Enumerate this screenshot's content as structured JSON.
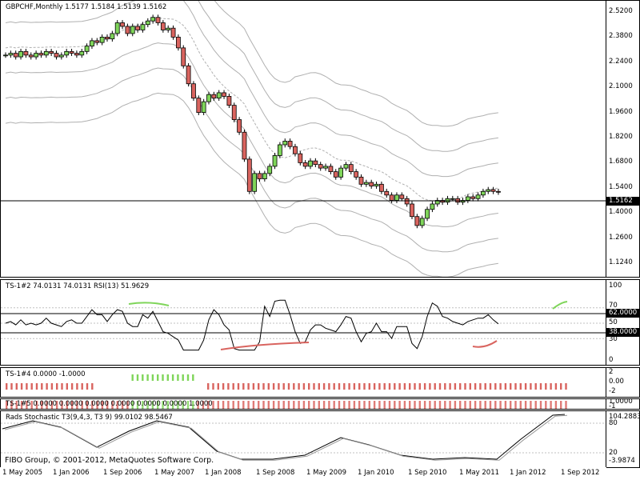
{
  "main": {
    "title": "GBPCHF,Monthly  1.5177 1.5184 1.5139 1.5162",
    "price_ticks": [
      "2.5200",
      "2.3800",
      "2.2400",
      "2.1000",
      "1.9600",
      "1.8200",
      "1.6800",
      "1.5400",
      "1.4000",
      "1.2600",
      "1.1240"
    ],
    "current_price": "1.5162",
    "colors": {
      "bull": "#7fd55a",
      "bear": "#d9645f",
      "band": "#b0b0b0",
      "grid": "#c0c0c0"
    }
  },
  "rsi": {
    "label": "TS-1#2 74.0131 74.0131  RSI(13) 51.9629",
    "ticks": [
      "100",
      "70",
      "50",
      "30",
      "0"
    ],
    "level_high": "62.0000",
    "level_low": "38.0000"
  },
  "ts4": {
    "label": "TS-1#4 0.0000 -1.0000",
    "ticks": [
      "2",
      "0.00",
      "-2"
    ]
  },
  "ts5": {
    "label": "TS-1#5 0.0000 0.0000 0.0000 0.0000 0.0000 0.0000 1.0000",
    "ticks": [
      "1.0000",
      "-1"
    ]
  },
  "stoch": {
    "label": "Rads Stochastic T3(9,4,3, T3 9) 99.0102 98.5467",
    "ticks": [
      "104.2883",
      "80",
      "20",
      "-3.9874"
    ]
  },
  "x_labels": [
    "1 May 2005",
    "1 Jan 2006",
    "1 Sep 2006",
    "1 May 2007",
    "1 Jan 2008",
    "1 Sep 2008",
    "1 May 2009",
    "1 Jan 2010",
    "1 Sep 2010",
    "1 May 2011",
    "1 Jan 2012",
    "1 Sep 2012"
  ],
  "copyright": "FIBO Group, © 2001-2012, MetaQuotes Software Corp."
}
